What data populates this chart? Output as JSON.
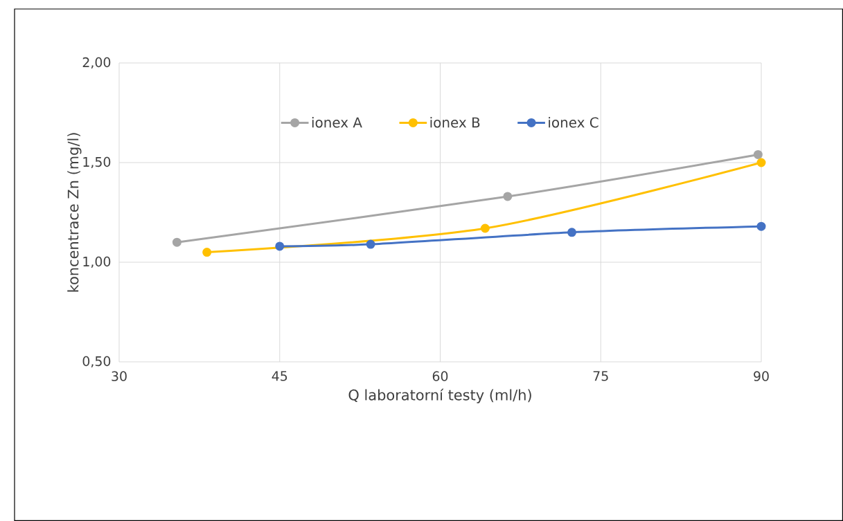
{
  "chart_data": {
    "type": "line",
    "xlabel": "Q laboratorní testy (ml/h)",
    "ylabel": "koncentrace Zn (mg/l)",
    "xlim": [
      30,
      90
    ],
    "xticks": [
      30,
      45,
      60,
      75,
      90
    ],
    "ylim": [
      0.5,
      2.0
    ],
    "yticks": [
      {
        "value": 0.5,
        "label": "0,50"
      },
      {
        "value": 1.0,
        "label": "1,00"
      },
      {
        "value": 1.5,
        "label": "1,50"
      },
      {
        "value": 2.0,
        "label": "2,00"
      }
    ],
    "grid": true,
    "legend": "top",
    "marker": "circle",
    "line_style": "solid",
    "series": [
      {
        "name": "ionex A",
        "color": "#a5a5a5",
        "x": [
          35.4,
          66.3,
          89.7
        ],
        "values": [
          1.1,
          1.33,
          1.54
        ]
      },
      {
        "name": "ionex B",
        "color": "#ffc000",
        "x": [
          38.2,
          64.2,
          90.0
        ],
        "values": [
          1.05,
          1.17,
          1.5
        ]
      },
      {
        "name": "ionex C",
        "color": "#4472c4",
        "x": [
          45.0,
          53.5,
          72.3,
          90.0
        ],
        "values": [
          1.08,
          1.09,
          1.15,
          1.18
        ]
      }
    ]
  }
}
